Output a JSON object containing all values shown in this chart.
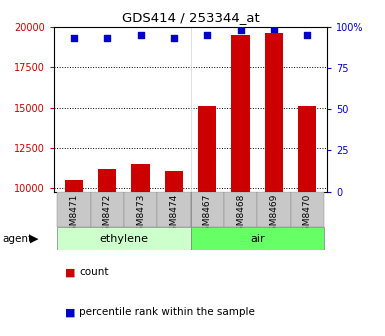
{
  "title": "GDS414 / 253344_at",
  "samples": [
    "GSM8471",
    "GSM8472",
    "GSM8473",
    "GSM8474",
    "GSM8467",
    "GSM8468",
    "GSM8469",
    "GSM8470"
  ],
  "counts": [
    10500,
    11200,
    11500,
    11100,
    15100,
    19500,
    19600,
    15100
  ],
  "percentiles": [
    93,
    93,
    95,
    93,
    95,
    98,
    99,
    95
  ],
  "groups": [
    {
      "label": "ethylene",
      "n": 4,
      "color": "#ccffcc"
    },
    {
      "label": "air",
      "n": 4,
      "color": "#66ff66"
    }
  ],
  "group_label": "agent",
  "bar_color": "#cc0000",
  "dot_color": "#0000cc",
  "ylim_left": [
    9800,
    20000
  ],
  "ylim_right": [
    0,
    100
  ],
  "yticks_left": [
    10000,
    12500,
    15000,
    17500,
    20000
  ],
  "yticks_right": [
    0,
    25,
    50,
    75,
    100
  ],
  "background_color": "#ffffff",
  "tick_area_color": "#c8c8c8",
  "legend_count_label": "count",
  "legend_percentile_label": "percentile rank within the sample"
}
